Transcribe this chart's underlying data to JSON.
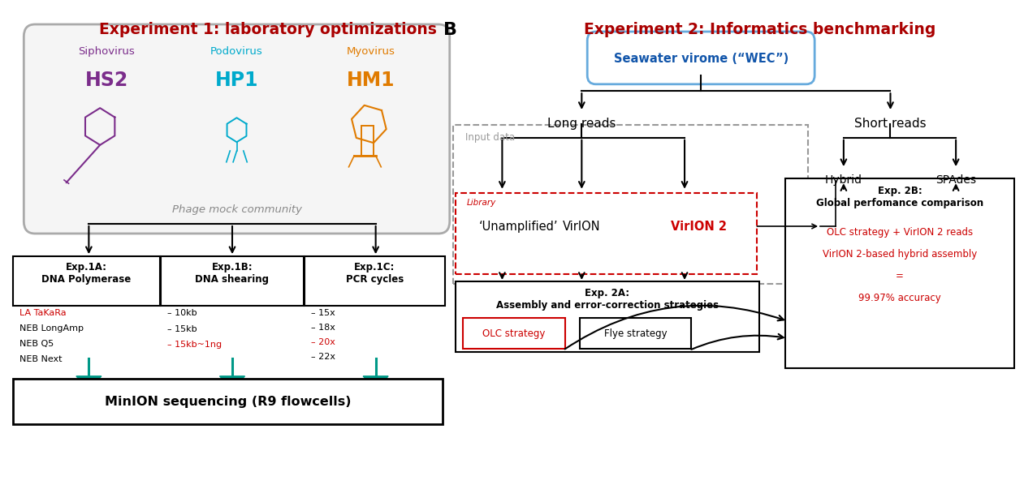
{
  "title_A": "Experiment 1: laboratory optimizations",
  "title_B": "Experiment 2: Informatics benchmarking",
  "label_B": "B",
  "bg_color": "#ffffff",
  "title_A_color": "#aa0000",
  "title_B_color": "#aa0000",
  "phage_label": "Phage mock community",
  "virus1_name": "Siphovirus",
  "virus1_code": "HS2",
  "virus1_color": "#7B2D8B",
  "virus2_name": "Podovirus",
  "virus2_code": "HP1",
  "virus2_color": "#00AACC",
  "virus3_name": "Myovirus",
  "virus3_code": "HM1",
  "virus3_color": "#E07B00",
  "exp1a_title": "Exp.1A:\nDNA Polymerase",
  "exp1a_items": [
    "LA TaKaRa",
    "NEB LongAmp",
    "NEB Q5",
    "NEB Next"
  ],
  "exp1a_highlight": "LA TaKaRa",
  "exp1b_title": "Exp.1B:\nDNA shearing",
  "exp1b_items": [
    "10kb",
    "15kb",
    "15kb~1ng"
  ],
  "exp1b_highlight": "15kb~1ng",
  "exp1c_title": "Exp.1C:\nPCR cycles",
  "exp1c_items": [
    "15x",
    "18x",
    "20x",
    "22x"
  ],
  "exp1c_highlight": "20x",
  "minion_label": "MinION sequencing (R9 flowcells)",
  "seawater_label": "Seawater virome (“WEC”)",
  "input_data_label": "Input data",
  "long_reads_label": "Long reads",
  "short_reads_label": "Short reads",
  "library_label": "Library",
  "unamplified_label": "‘Unamplified’",
  "virion_label": "VirION",
  "virion2_label": "VirION 2",
  "virion2_color": "#cc0000",
  "hybrid_label": "Hybrid",
  "spades_label": "SPAdes",
  "exp2a_title": "Exp. 2A:\nAssembly and error-correction strategies",
  "exp2b_title": "Exp. 2B:\nGlobal perfomance comparison",
  "olc_label": "OLC strategy",
  "flye_label": "Flye strategy",
  "result_line1": "OLC strategy + VirION 2 reads",
  "result_line2": "VirION 2-based hybrid assembly",
  "result_line3": "=",
  "result_line4": "99.97% accuracy",
  "result_color": "#cc0000",
  "highlight_color": "#cc0000",
  "box_color": "#000000",
  "teal_color": "#009988"
}
